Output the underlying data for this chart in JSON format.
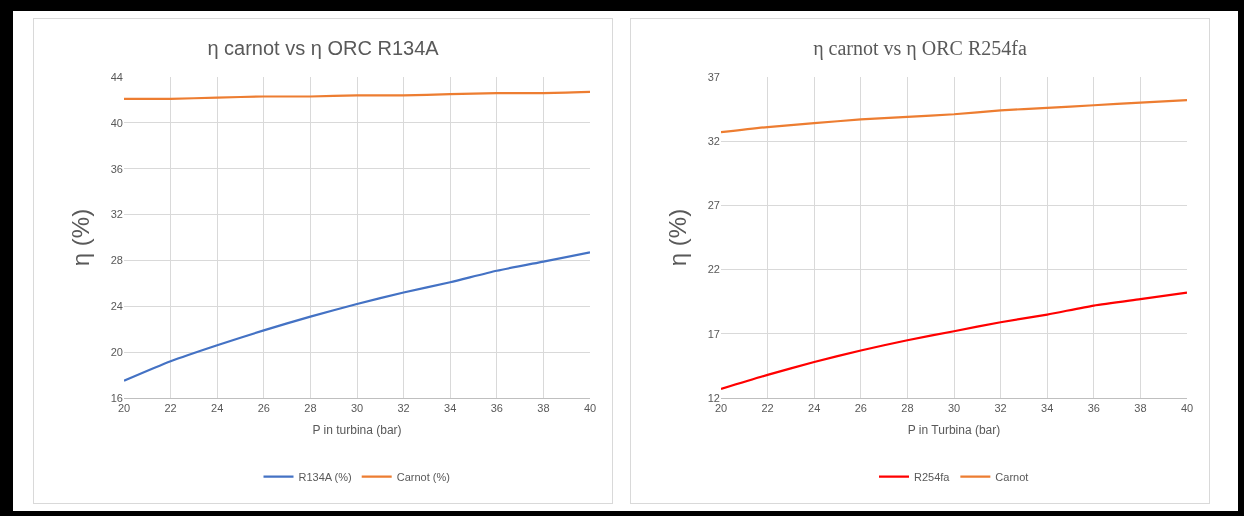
{
  "chart_data": [
    {
      "type": "line",
      "title": "η carnot vs η ORC R134A",
      "xlabel": "P in turbina (bar)",
      "ylabel": "η (%)",
      "x": [
        20,
        22,
        24,
        26,
        28,
        30,
        32,
        34,
        36,
        38,
        40
      ],
      "series": [
        {
          "name": "R134A (%)",
          "color": "#4472c4",
          "values": [
            17.5,
            19.2,
            20.6,
            21.9,
            23.1,
            24.2,
            25.2,
            26.1,
            27.1,
            27.9,
            28.7
          ]
        },
        {
          "name": "Carnot (%)",
          "color": "#ed7d31",
          "values": [
            42.1,
            42.1,
            42.2,
            42.3,
            42.3,
            42.4,
            42.4,
            42.5,
            42.6,
            42.6,
            42.7
          ]
        }
      ],
      "xlim": [
        20,
        40
      ],
      "xticks": [
        20,
        22,
        24,
        26,
        28,
        30,
        32,
        34,
        36,
        38,
        40
      ],
      "ylim": [
        16,
        44
      ],
      "yticks": [
        16,
        20,
        24,
        28,
        32,
        36,
        40,
        44
      ],
      "grid": true,
      "legend": "bottom"
    },
    {
      "type": "line",
      "title": "η carnot vs η ORC R254fa",
      "xlabel": "P in Turbina (bar)",
      "ylabel": "η (%)",
      "x": [
        20,
        22,
        24,
        26,
        28,
        30,
        32,
        34,
        36,
        38,
        40
      ],
      "series": [
        {
          "name": "R254fa",
          "color": "#ff0000",
          "values": [
            12.7,
            13.8,
            14.8,
            15.7,
            16.5,
            17.2,
            17.9,
            18.5,
            19.2,
            19.7,
            20.2
          ]
        },
        {
          "name": "Carnot",
          "color": "#ed7d31",
          "values": [
            32.7,
            33.1,
            33.4,
            33.7,
            33.9,
            34.1,
            34.4,
            34.6,
            34.8,
            35,
            35.2
          ]
        }
      ],
      "xlim": [
        20,
        40
      ],
      "xticks": [
        20,
        22,
        24,
        26,
        28,
        30,
        32,
        34,
        36,
        38,
        40
      ],
      "ylim": [
        12,
        37
      ],
      "yticks": [
        12,
        17,
        22,
        27,
        32,
        37
      ],
      "grid": true,
      "legend": "bottom"
    }
  ]
}
